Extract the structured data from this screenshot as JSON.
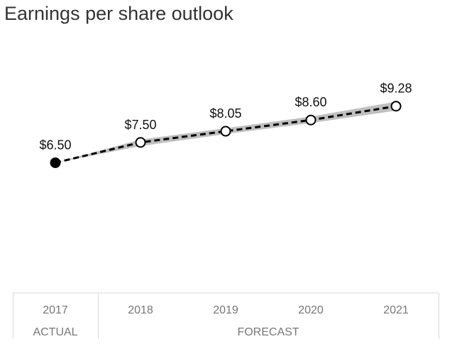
{
  "title": "Earnings per share outlook",
  "chart_data": {
    "type": "line",
    "title": "Earnings per share outlook",
    "categories": [
      "2017",
      "2018",
      "2019",
      "2020",
      "2021"
    ],
    "values": [
      6.5,
      7.5,
      8.05,
      8.6,
      9.28
    ],
    "data_labels": [
      "$6.50",
      "$7.50",
      "$8.05",
      "$8.60",
      "$9.28"
    ],
    "actual_count": 1,
    "band": {
      "low": [
        6.5,
        7.32,
        7.91,
        8.45,
        9.06
      ],
      "high": [
        6.5,
        7.64,
        8.2,
        8.77,
        9.5
      ]
    },
    "periods": [
      {
        "label": "ACTUAL",
        "start": 0,
        "end": 0
      },
      {
        "label": "FORECAST",
        "start": 1,
        "end": 4
      }
    ],
    "line_style": "dashed",
    "band_color": "#c0c0c0",
    "line_color": "#000000",
    "actual_marker": "filled-circle",
    "forecast_marker": "hollow-circle",
    "grid": false
  }
}
